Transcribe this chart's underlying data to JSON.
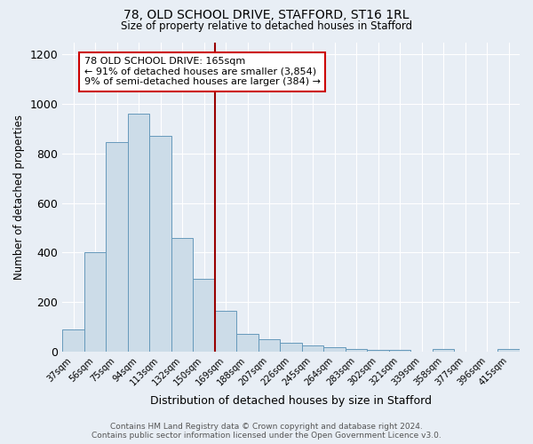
{
  "title": "78, OLD SCHOOL DRIVE, STAFFORD, ST16 1RL",
  "subtitle": "Size of property relative to detached houses in Stafford",
  "xlabel": "Distribution of detached houses by size in Stafford",
  "ylabel": "Number of detached properties",
  "categories": [
    "37sqm",
    "56sqm",
    "75sqm",
    "94sqm",
    "113sqm",
    "132sqm",
    "150sqm",
    "169sqm",
    "188sqm",
    "207sqm",
    "226sqm",
    "245sqm",
    "264sqm",
    "283sqm",
    "302sqm",
    "321sqm",
    "339sqm",
    "358sqm",
    "377sqm",
    "396sqm",
    "415sqm"
  ],
  "values": [
    90,
    400,
    845,
    960,
    870,
    460,
    295,
    165,
    70,
    50,
    35,
    25,
    18,
    8,
    5,
    5,
    0,
    8,
    0,
    0,
    8
  ],
  "bar_color": "#ccdce8",
  "bar_edge_color": "#6699bb",
  "vline_index": 7,
  "vline_color": "#990000",
  "annotation_lines": [
    "78 OLD SCHOOL DRIVE: 165sqm",
    "← 91% of detached houses are smaller (3,854)",
    "9% of semi-detached houses are larger (384) →"
  ],
  "ylim": [
    0,
    1250
  ],
  "yticks": [
    0,
    200,
    400,
    600,
    800,
    1000,
    1200
  ],
  "background_color": "#e8eef5",
  "grid_color": "#ffffff",
  "footer": "Contains HM Land Registry data © Crown copyright and database right 2024.\nContains public sector information licensed under the Open Government Licence v3.0."
}
